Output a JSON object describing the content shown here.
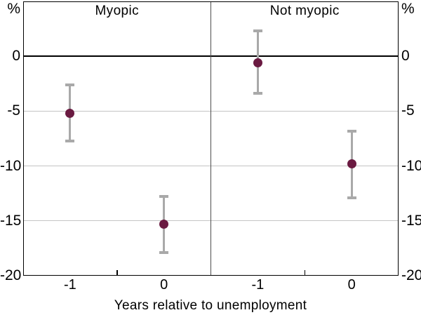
{
  "chart_data": {
    "type": "scatter",
    "subtype": "point-estimates-with-error-bars",
    "panels": [
      {
        "title": "Myopic",
        "points": [
          {
            "x": -1,
            "y": -5.2,
            "ci_low": -7.7,
            "ci_high": -2.6
          },
          {
            "x": 0,
            "y": -15.3,
            "ci_low": -17.9,
            "ci_high": -12.8
          }
        ]
      },
      {
        "title": "Not myopic",
        "points": [
          {
            "x": -1,
            "y": -0.6,
            "ci_low": -3.4,
            "ci_high": 2.3
          },
          {
            "x": 0,
            "y": -9.8,
            "ci_low": -12.9,
            "ci_high": -6.8
          }
        ]
      }
    ],
    "xlabel": "Years relative to unemployment",
    "x_tick_labels": [
      "-1",
      "0"
    ],
    "y_unit_label": "%",
    "y_ticks": [
      {
        "label": "0",
        "value": 0
      },
      {
        "label": "-5",
        "value": -5
      },
      {
        "label": "-10",
        "value": -10
      },
      {
        "label": "-15",
        "value": -15
      },
      {
        "label": "-20",
        "value": -20
      }
    ],
    "ylim": [
      -20,
      5
    ],
    "gridlines_at": [
      -5,
      -10,
      -15
    ],
    "zero_line_at": 0,
    "grid": "horizontal",
    "legend": "none",
    "colors": {
      "marker": "#6a1a41",
      "error_bar": "#a9a9a9",
      "gridline": "#c4c4c4",
      "axis": "#000000",
      "text": "#000000"
    }
  }
}
